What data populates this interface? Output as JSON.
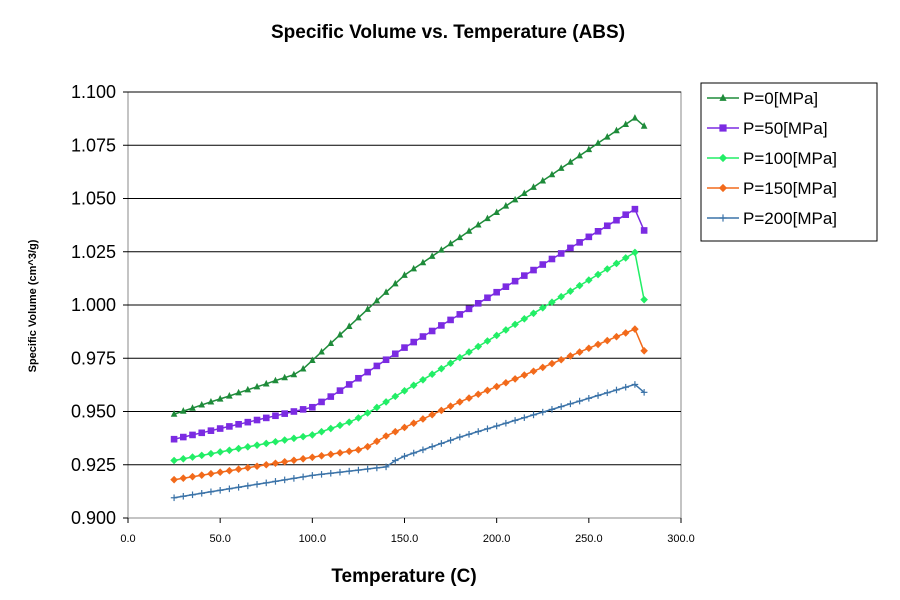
{
  "chart_data": {
    "type": "line",
    "title": "Specific Volume vs. Temperature (ABS)",
    "xlabel": "Temperature (C)",
    "ylabel": "Specific Volume (cm^3/g)",
    "xlim": [
      0,
      300
    ],
    "ylim": [
      0.9,
      1.1
    ],
    "x_ticks": [
      "0.0",
      "50.0",
      "100.0",
      "150.0",
      "200.0",
      "250.0",
      "300.0"
    ],
    "y_ticks": [
      "0.900",
      "0.925",
      "0.950",
      "0.975",
      "1.000",
      "1.025",
      "1.050",
      "1.075",
      "1.100"
    ],
    "grid": "horizontal",
    "legend_position": "right",
    "x": [
      25,
      30,
      35,
      40,
      45,
      50,
      55,
      60,
      65,
      70,
      75,
      80,
      85,
      90,
      95,
      100,
      105,
      110,
      115,
      120,
      125,
      130,
      135,
      140,
      145,
      150,
      155,
      160,
      165,
      170,
      175,
      180,
      185,
      190,
      195,
      200,
      205,
      210,
      215,
      220,
      225,
      230,
      235,
      240,
      245,
      250,
      255,
      260,
      265,
      270,
      275,
      280
    ],
    "series": [
      {
        "name": "P=0[MPa]",
        "color": "#1E8B3A",
        "marker": "triangle",
        "values": [
          0.9488,
          0.9502,
          0.9516,
          0.9531,
          0.9545,
          0.9559,
          0.9573,
          0.9588,
          0.9602,
          0.9616,
          0.963,
          0.9645,
          0.9659,
          0.9673,
          0.97,
          0.974,
          0.978,
          0.982,
          0.986,
          0.99,
          0.994,
          0.998,
          1.002,
          1.006,
          1.01,
          1.014,
          1.017,
          1.0199,
          1.0229,
          1.0258,
          1.0288,
          1.0317,
          1.0347,
          1.0376,
          1.0406,
          1.0435,
          1.0465,
          1.0494,
          1.0524,
          1.0553,
          1.0583,
          1.0612,
          1.0642,
          1.0671,
          1.0701,
          1.073,
          1.076,
          1.0789,
          1.0819,
          1.0848,
          1.0878,
          1.084
        ]
      },
      {
        "name": "P=50[MPa]",
        "color": "#7B2BE2",
        "marker": "square",
        "values": [
          0.937,
          0.938,
          0.939,
          0.94,
          0.941,
          0.942,
          0.943,
          0.944,
          0.945,
          0.946,
          0.947,
          0.948,
          0.949,
          0.95,
          0.951,
          0.952,
          0.9545,
          0.957,
          0.9598,
          0.9627,
          0.9656,
          0.9685,
          0.9714,
          0.9743,
          0.9771,
          0.98,
          0.9826,
          0.9852,
          0.9878,
          0.9904,
          0.993,
          0.9956,
          0.9982,
          1.0008,
          1.0034,
          1.006,
          1.0086,
          1.0112,
          1.0138,
          1.0164,
          1.019,
          1.0216,
          1.0242,
          1.0268,
          1.0294,
          1.032,
          1.0346,
          1.0372,
          1.0398,
          1.0424,
          1.045,
          1.035
        ]
      },
      {
        "name": "P=100[MPa]",
        "color": "#22EE66",
        "marker": "diamond",
        "values": [
          0.927,
          0.9278,
          0.9286,
          0.9294,
          0.9302,
          0.931,
          0.9318,
          0.9326,
          0.9334,
          0.9342,
          0.935,
          0.9358,
          0.9366,
          0.9374,
          0.9382,
          0.939,
          0.9405,
          0.942,
          0.9435,
          0.945,
          0.947,
          0.9493,
          0.9519,
          0.9545,
          0.9571,
          0.9597,
          0.9623,
          0.9649,
          0.9675,
          0.9701,
          0.9727,
          0.9753,
          0.9779,
          0.9805,
          0.9831,
          0.9857,
          0.9883,
          0.9909,
          0.9935,
          0.9961,
          0.9987,
          1.0013,
          1.0039,
          1.0065,
          1.0091,
          1.0117,
          1.0143,
          1.0169,
          1.0195,
          1.0221,
          1.0247,
          1.0025
        ]
      },
      {
        "name": "P=150[MPa]",
        "color": "#F26A1B",
        "marker": "diamond",
        "values": [
          0.918,
          0.9187,
          0.9194,
          0.9201,
          0.9208,
          0.9215,
          0.9222,
          0.9229,
          0.9236,
          0.9243,
          0.925,
          0.9257,
          0.9264,
          0.9271,
          0.9278,
          0.9285,
          0.9292,
          0.9299,
          0.9306,
          0.9313,
          0.932,
          0.9335,
          0.936,
          0.9385,
          0.9405,
          0.9425,
          0.9445,
          0.9465,
          0.9485,
          0.9505,
          0.9525,
          0.9545,
          0.9563,
          0.9581,
          0.9599,
          0.9617,
          0.9635,
          0.9653,
          0.9671,
          0.9689,
          0.9707,
          0.9725,
          0.9743,
          0.9761,
          0.9779,
          0.9797,
          0.9815,
          0.9833,
          0.9851,
          0.9869,
          0.9887,
          0.9785
        ]
      },
      {
        "name": "P=200[MPa]",
        "color": "#3B73A8",
        "marker": "plus",
        "values": [
          0.9095,
          0.9102,
          0.9109,
          0.9116,
          0.9123,
          0.913,
          0.9137,
          0.9144,
          0.9151,
          0.9158,
          0.9165,
          0.9172,
          0.9179,
          0.9186,
          0.9193,
          0.92,
          0.9205,
          0.921,
          0.9215,
          0.922,
          0.9225,
          0.923,
          0.9235,
          0.924,
          0.927,
          0.929,
          0.9305,
          0.932,
          0.9335,
          0.935,
          0.9365,
          0.938,
          0.9393,
          0.9406,
          0.9419,
          0.9432,
          0.9445,
          0.9458,
          0.9471,
          0.9484,
          0.9497,
          0.951,
          0.9523,
          0.9536,
          0.9549,
          0.9562,
          0.9575,
          0.9588,
          0.9601,
          0.9614,
          0.9627,
          0.959
        ]
      }
    ]
  }
}
